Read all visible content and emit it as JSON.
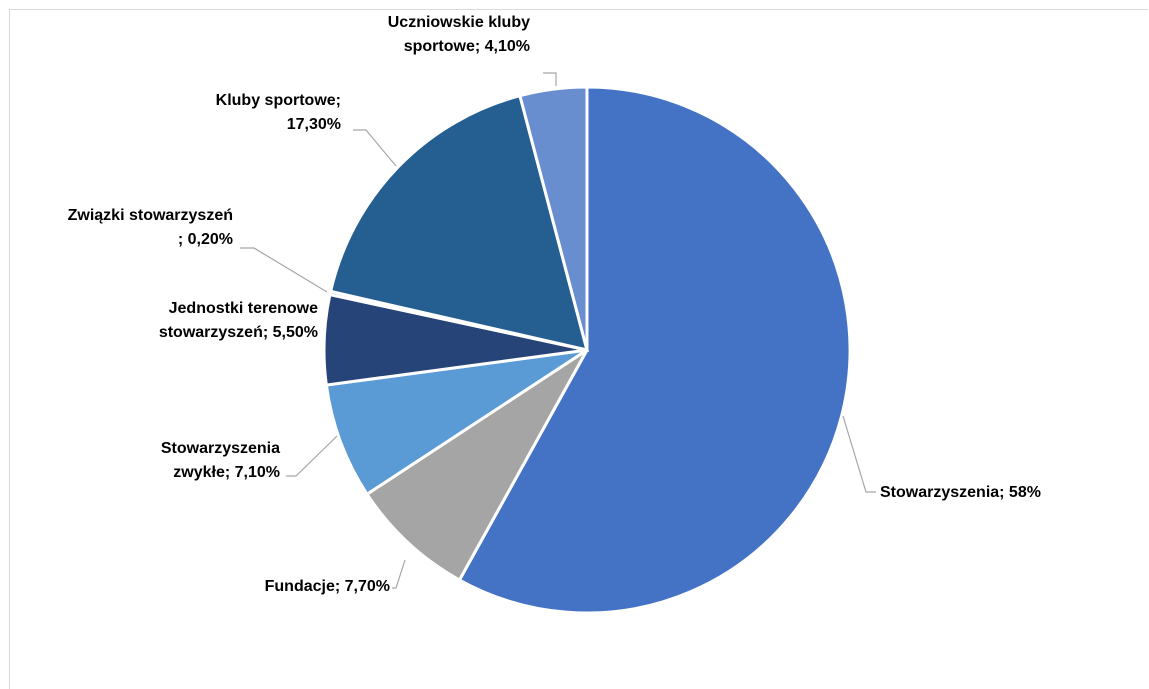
{
  "chart_data": {
    "type": "pie",
    "slices": [
      {
        "label_lines": [
          "Stowarzyszenia; 58%"
        ],
        "value": 58.0,
        "color": "#4472c4"
      },
      {
        "label_lines": [
          "Fundacje; 7,70%"
        ],
        "value": 7.7,
        "color": "#a5a5a5"
      },
      {
        "label_lines": [
          "Stowarzyszenia",
          "zwykłe; 7,10%"
        ],
        "value": 7.1,
        "color": "#5b9bd5"
      },
      {
        "label_lines": [
          "Jednostki terenowe",
          "stowarzyszeń; 5,50%"
        ],
        "value": 5.5,
        "color": "#264478"
      },
      {
        "label_lines": [
          "Związki stowarzyszeń",
          "; 0,20%"
        ],
        "value": 0.2,
        "color": "#4472c4"
      },
      {
        "label_lines": [
          "Kluby sportowe;",
          "17,30%"
        ],
        "value": 17.3,
        "color": "#255e91"
      },
      {
        "label_lines": [
          "Uczniowskie kluby",
          "sportowe; 4,10%"
        ],
        "value": 4.1,
        "color": "#698ed0"
      }
    ]
  }
}
